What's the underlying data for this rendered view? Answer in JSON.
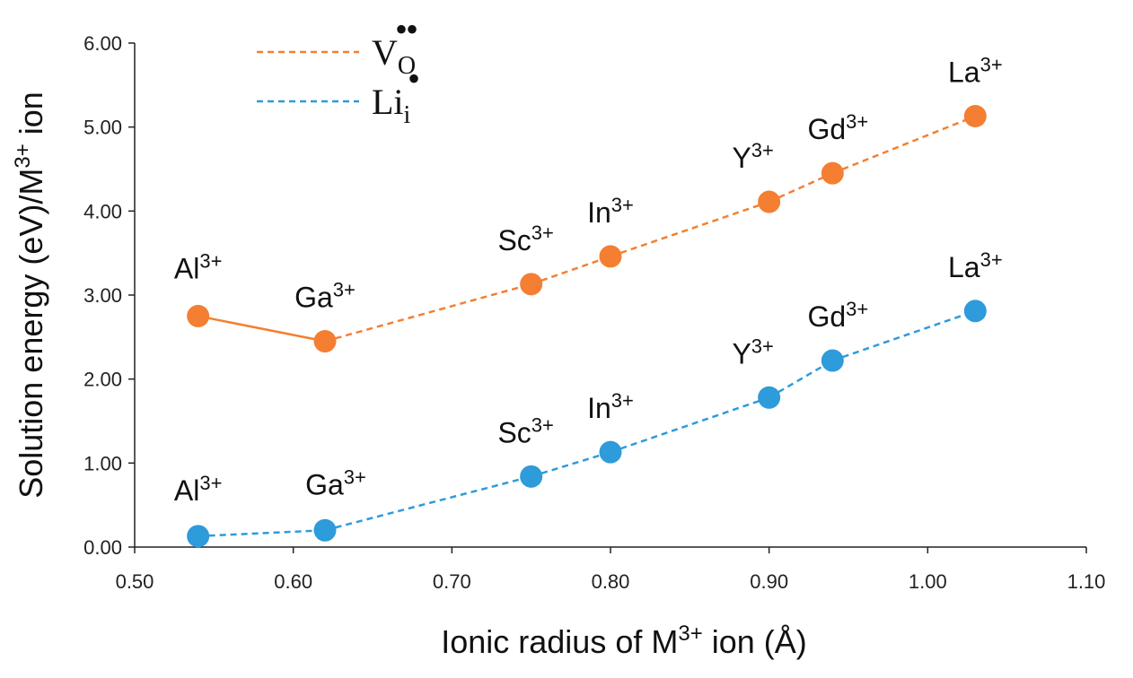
{
  "chart_data": {
    "type": "line",
    "title": "",
    "xlabel": {
      "base": "Ionic radius of M",
      "sup": "3+",
      "rest": " ion (Å)"
    },
    "ylabel": {
      "base": "Solution energy (eV)/M",
      "sup": "3+",
      "rest": " ion"
    },
    "xlim": [
      0.5,
      1.1
    ],
    "ylim": [
      0.0,
      6.0
    ],
    "x_ticks": [
      "0.50",
      "0.60",
      "0.70",
      "0.80",
      "0.90",
      "1.00",
      "1.10"
    ],
    "y_ticks": [
      "0.00",
      "1.00",
      "2.00",
      "3.00",
      "4.00",
      "5.00",
      "6.00"
    ],
    "legend_position": "top-left",
    "series": [
      {
        "name": "V_O••",
        "legend": {
          "main": "V",
          "sub": "O",
          "sup": "••"
        },
        "color": "#F47F32",
        "x": [
          0.54,
          0.62,
          0.75,
          0.8,
          0.9,
          0.94,
          1.03
        ],
        "y": [
          2.75,
          2.45,
          3.13,
          3.46,
          4.11,
          4.45,
          5.13
        ],
        "labels": [
          {
            "ion": "Al",
            "charge": "3+"
          },
          {
            "ion": "Ga",
            "charge": "3+"
          },
          {
            "ion": "Sc",
            "charge": "3+"
          },
          {
            "ion": "In",
            "charge": "3+"
          },
          {
            "ion": "Y",
            "charge": "3+"
          },
          {
            "ion": "Gd",
            "charge": "3+"
          },
          {
            "ion": "La",
            "charge": "3+"
          }
        ]
      },
      {
        "name": "Li_i•",
        "legend": {
          "main": "Li",
          "sub": "i",
          "sup": "•"
        },
        "color": "#2E9BDA",
        "x": [
          0.54,
          0.62,
          0.75,
          0.8,
          0.9,
          0.94,
          1.03
        ],
        "y": [
          0.13,
          0.2,
          0.84,
          1.13,
          1.78,
          2.22,
          2.81
        ],
        "labels": [
          {
            "ion": "Al",
            "charge": "3+"
          },
          {
            "ion": "Ga",
            "charge": "3+"
          },
          {
            "ion": "Sc",
            "charge": "3+"
          },
          {
            "ion": "In",
            "charge": "3+"
          },
          {
            "ion": "Y",
            "charge": "3+"
          },
          {
            "ion": "Gd",
            "charge": "3+"
          },
          {
            "ion": "La",
            "charge": "3+"
          }
        ]
      }
    ]
  }
}
